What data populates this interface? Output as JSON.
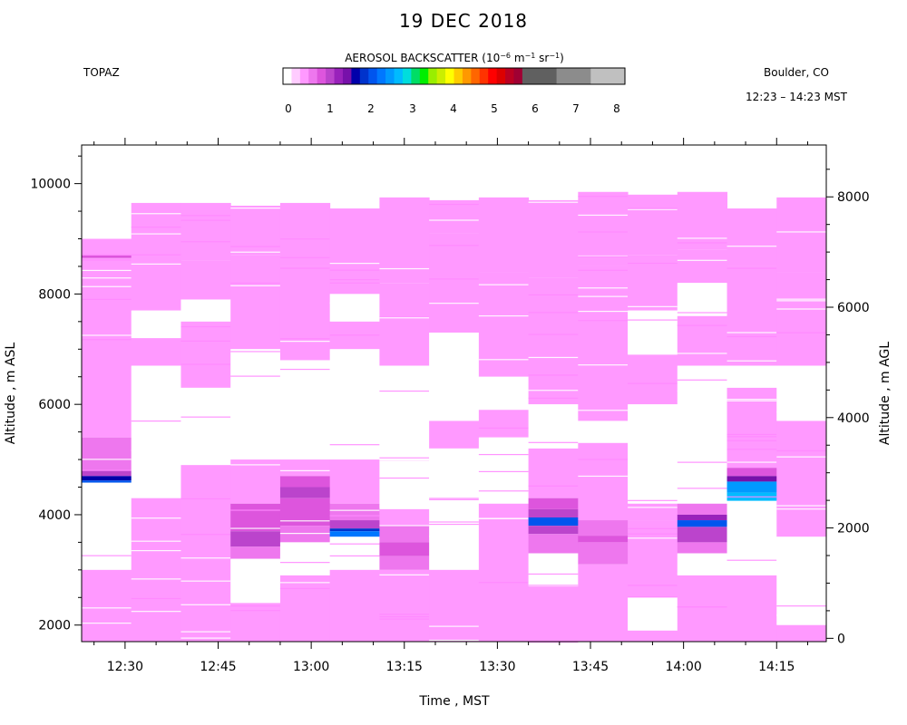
{
  "chart_data": {
    "type": "heatmap",
    "title": "19 DEC 2018",
    "instrument": "TOPAZ",
    "location": "Boulder, CO",
    "time_range": "12:23 – 14:23 MST",
    "colorbar": {
      "label": "AEROSOL BACKSCATTER (10",
      "exp1": "−6",
      "unit_m": " m",
      "exp2": "−1",
      "unit_sr": " sr",
      "exp3": "−1",
      "close": ")",
      "ticks": [
        "0",
        "1",
        "2",
        "3",
        "4",
        "5",
        "6",
        "7",
        "8"
      ],
      "range": [
        0,
        8
      ],
      "colors": [
        "#ffffff",
        "#ffccff",
        "#ff99ff",
        "#ee77ee",
        "#dd55dd",
        "#bb44cc",
        "#9922bb",
        "#7711aa",
        "#0000aa",
        "#0033cc",
        "#0055ee",
        "#0077ff",
        "#0099ff",
        "#00bbff",
        "#00dddd",
        "#00dd66",
        "#00ee00",
        "#99ee00",
        "#ccee00",
        "#ffff00",
        "#ffcc00",
        "#ff9900",
        "#ff6600",
        "#ff3300",
        "#ff0000",
        "#dd0000",
        "#bb0022",
        "#a00033",
        "#606060",
        "#606060",
        "#606060",
        "#606060",
        "#8c8c8c",
        "#8c8c8c",
        "#8c8c8c",
        "#8c8c8c",
        "#c0c0c0",
        "#c0c0c0",
        "#c0c0c0",
        "#c0c0c0"
      ]
    },
    "xlabel": "Time , MST",
    "ylabel_left": "Altitude , m ASL",
    "ylabel_right": "Altitude , m AGL",
    "x_ticks": [
      "12:30",
      "12:45",
      "13:00",
      "13:15",
      "13:30",
      "13:45",
      "14:00",
      "14:15"
    ],
    "x_tick_minutes": [
      30,
      45,
      60,
      75,
      90,
      105,
      120,
      135
    ],
    "xlim_minutes": [
      23,
      143
    ],
    "ylim_left": [
      1700,
      10700
    ],
    "y_ticks_left": [
      "2000",
      "4000",
      "6000",
      "8000",
      "10000"
    ],
    "y_ticks_left_values": [
      2000,
      4000,
      6000,
      8000,
      10000
    ],
    "y_ticks_right": [
      "0",
      "2000",
      "4000",
      "6000",
      "8000"
    ],
    "y_ticks_right_values": [
      0,
      2000,
      4000,
      6000,
      8000
    ],
    "agl_offset_m": 1760,
    "profiles": [
      {
        "top": 9000,
        "bands": [
          {
            "bottom": 8700,
            "top": 9000,
            "value": 0.3
          },
          {
            "bottom": 8650,
            "top": 8700,
            "value": 0.8
          },
          {
            "bottom": 5400,
            "top": 8650,
            "value": 0.4
          },
          {
            "bottom": 4800,
            "top": 5400,
            "value": 0.6
          },
          {
            "bottom": 4700,
            "top": 4800,
            "value": 1.0
          },
          {
            "bottom": 4620,
            "top": 4700,
            "value": 1.6
          },
          {
            "bottom": 4580,
            "top": 4620,
            "value": 2.0
          },
          {
            "bottom": 3000,
            "top": 4580,
            "value": 0.0
          },
          {
            "bottom": 1700,
            "top": 3000,
            "value": 0.4
          }
        ]
      },
      {
        "top": 9650,
        "bands": [
          {
            "bottom": 8500,
            "top": 9650,
            "value": 0.35
          },
          {
            "bottom": 7700,
            "top": 8500,
            "value": 0.4
          },
          {
            "bottom": 7200,
            "top": 7700,
            "value": 0.0
          },
          {
            "bottom": 6700,
            "top": 7200,
            "value": 0.4
          },
          {
            "bottom": 4300,
            "top": 6700,
            "value": 0.0
          },
          {
            "bottom": 1700,
            "top": 4300,
            "value": 0.4
          }
        ]
      },
      {
        "top": 9650,
        "bands": [
          {
            "bottom": 8600,
            "top": 9650,
            "value": 0.35
          },
          {
            "bottom": 7900,
            "top": 8600,
            "value": 0.4
          },
          {
            "bottom": 7500,
            "top": 7900,
            "value": 0.0
          },
          {
            "bottom": 6300,
            "top": 7500,
            "value": 0.4
          },
          {
            "bottom": 4900,
            "top": 6300,
            "value": 0.0
          },
          {
            "bottom": 1700,
            "top": 4900,
            "value": 0.4
          }
        ]
      },
      {
        "top": 9600,
        "bands": [
          {
            "bottom": 8700,
            "top": 9600,
            "value": 0.35
          },
          {
            "bottom": 7000,
            "top": 8700,
            "value": 0.4
          },
          {
            "bottom": 5000,
            "top": 7000,
            "value": 0.0
          },
          {
            "bottom": 4200,
            "top": 5000,
            "value": 0.4
          },
          {
            "bottom": 3700,
            "top": 4200,
            "value": 0.7
          },
          {
            "bottom": 3420,
            "top": 3700,
            "value": 0.9
          },
          {
            "bottom": 3200,
            "top": 3420,
            "value": 0.6
          },
          {
            "bottom": 2400,
            "top": 3200,
            "value": 0.0
          },
          {
            "bottom": 1700,
            "top": 2400,
            "value": 0.4
          }
        ]
      },
      {
        "top": 9650,
        "bands": [
          {
            "bottom": 8500,
            "top": 9650,
            "value": 0.35
          },
          {
            "bottom": 6800,
            "top": 8500,
            "value": 0.4
          },
          {
            "bottom": 5000,
            "top": 6800,
            "value": 0.0
          },
          {
            "bottom": 4700,
            "top": 5000,
            "value": 0.4
          },
          {
            "bottom": 4500,
            "top": 4700,
            "value": 0.7
          },
          {
            "bottom": 4300,
            "top": 4500,
            "value": 0.9
          },
          {
            "bottom": 3800,
            "top": 4300,
            "value": 0.7
          },
          {
            "bottom": 3500,
            "top": 3800,
            "value": 0.5
          },
          {
            "bottom": 2900,
            "top": 3500,
            "value": 0.0
          },
          {
            "bottom": 1700,
            "top": 2900,
            "value": 0.4
          }
        ]
      },
      {
        "top": 9550,
        "bands": [
          {
            "bottom": 8000,
            "top": 9550,
            "value": 0.4
          },
          {
            "bottom": 7500,
            "top": 8000,
            "value": 0.0
          },
          {
            "bottom": 7000,
            "top": 7500,
            "value": 0.4
          },
          {
            "bottom": 5000,
            "top": 7000,
            "value": 0.0
          },
          {
            "bottom": 4200,
            "top": 5000,
            "value": 0.4
          },
          {
            "bottom": 3900,
            "top": 4200,
            "value": 0.6
          },
          {
            "bottom": 3750,
            "top": 3900,
            "value": 0.9
          },
          {
            "bottom": 3700,
            "top": 3750,
            "value": 1.7
          },
          {
            "bottom": 3600,
            "top": 3700,
            "value": 2.2
          },
          {
            "bottom": 3000,
            "top": 3600,
            "value": 0.0
          },
          {
            "bottom": 1700,
            "top": 3000,
            "value": 0.4
          }
        ]
      },
      {
        "top": 9750,
        "bands": [
          {
            "bottom": 8200,
            "top": 9750,
            "value": 0.35
          },
          {
            "bottom": 6700,
            "top": 8200,
            "value": 0.4
          },
          {
            "bottom": 4100,
            "top": 6700,
            "value": 0.0
          },
          {
            "bottom": 3800,
            "top": 4100,
            "value": 0.4
          },
          {
            "bottom": 3500,
            "top": 3800,
            "value": 0.6
          },
          {
            "bottom": 3250,
            "top": 3500,
            "value": 0.8
          },
          {
            "bottom": 3000,
            "top": 3250,
            "value": 0.5
          },
          {
            "bottom": 1700,
            "top": 3000,
            "value": 0.4
          }
        ]
      },
      {
        "top": 9700,
        "bands": [
          {
            "bottom": 9100,
            "top": 9700,
            "value": 0.35
          },
          {
            "bottom": 7300,
            "top": 9100,
            "value": 0.4
          },
          {
            "bottom": 5700,
            "top": 7300,
            "value": 0.0
          },
          {
            "bottom": 5200,
            "top": 5700,
            "value": 0.4
          },
          {
            "bottom": 3000,
            "top": 5200,
            "value": 0.0
          },
          {
            "bottom": 1700,
            "top": 3000,
            "value": 0.4
          }
        ]
      },
      {
        "top": 9750,
        "bands": [
          {
            "bottom": 8400,
            "top": 9750,
            "value": 0.35
          },
          {
            "bottom": 6500,
            "top": 8400,
            "value": 0.4
          },
          {
            "bottom": 5900,
            "top": 6500,
            "value": 0.0
          },
          {
            "bottom": 5400,
            "top": 5900,
            "value": 0.4
          },
          {
            "bottom": 4200,
            "top": 5400,
            "value": 0.0
          },
          {
            "bottom": 1700,
            "top": 4200,
            "value": 0.4
          }
        ]
      },
      {
        "top": 9700,
        "bands": [
          {
            "bottom": 8300,
            "top": 9700,
            "value": 0.35
          },
          {
            "bottom": 6000,
            "top": 8300,
            "value": 0.4
          },
          {
            "bottom": 5200,
            "top": 6000,
            "value": 0.0
          },
          {
            "bottom": 4300,
            "top": 5200,
            "value": 0.4
          },
          {
            "bottom": 4100,
            "top": 4300,
            "value": 0.7
          },
          {
            "bottom": 3950,
            "top": 4100,
            "value": 1.0
          },
          {
            "bottom": 3800,
            "top": 3950,
            "value": 1.9
          },
          {
            "bottom": 3650,
            "top": 3800,
            "value": 1.0
          },
          {
            "bottom": 3300,
            "top": 3650,
            "value": 0.6
          },
          {
            "bottom": 2700,
            "top": 3300,
            "value": 0.0
          },
          {
            "bottom": 1700,
            "top": 2700,
            "value": 0.4
          }
        ]
      },
      {
        "top": 9850,
        "bands": [
          {
            "bottom": 8500,
            "top": 9850,
            "value": 0.35
          },
          {
            "bottom": 5700,
            "top": 8500,
            "value": 0.4
          },
          {
            "bottom": 5300,
            "top": 5700,
            "value": 0.0
          },
          {
            "bottom": 3900,
            "top": 5300,
            "value": 0.4
          },
          {
            "bottom": 3620,
            "top": 3900,
            "value": 0.6
          },
          {
            "bottom": 3500,
            "top": 3620,
            "value": 0.8
          },
          {
            "bottom": 3100,
            "top": 3500,
            "value": 0.5
          },
          {
            "bottom": 1700,
            "top": 3100,
            "value": 0.4
          }
        ]
      },
      {
        "top": 9800,
        "bands": [
          {
            "bottom": 8700,
            "top": 9800,
            "value": 0.35
          },
          {
            "bottom": 7700,
            "top": 8700,
            "value": 0.4
          },
          {
            "bottom": 6900,
            "top": 7700,
            "value": 0.0
          },
          {
            "bottom": 6000,
            "top": 6900,
            "value": 0.4
          },
          {
            "bottom": 4200,
            "top": 6000,
            "value": 0.0
          },
          {
            "bottom": 3900,
            "top": 4200,
            "value": 0.4
          },
          {
            "bottom": 2500,
            "top": 3900,
            "value": 0.4
          },
          {
            "bottom": 1900,
            "top": 2500,
            "value": 0.0
          },
          {
            "bottom": 1700,
            "top": 1900,
            "value": 0.4
          }
        ]
      },
      {
        "top": 9850,
        "bands": [
          {
            "bottom": 8800,
            "top": 9850,
            "value": 0.35
          },
          {
            "bottom": 8200,
            "top": 8800,
            "value": 0.4
          },
          {
            "bottom": 7600,
            "top": 8200,
            "value": 0.0
          },
          {
            "bottom": 6700,
            "top": 7600,
            "value": 0.4
          },
          {
            "bottom": 4200,
            "top": 6700,
            "value": 0.0
          },
          {
            "bottom": 4000,
            "top": 4200,
            "value": 0.6
          },
          {
            "bottom": 3900,
            "top": 4000,
            "value": 1.2
          },
          {
            "bottom": 3780,
            "top": 3900,
            "value": 2.0
          },
          {
            "bottom": 3500,
            "top": 3780,
            "value": 0.9
          },
          {
            "bottom": 3300,
            "top": 3500,
            "value": 0.6
          },
          {
            "bottom": 2900,
            "top": 3300,
            "value": 0.0
          },
          {
            "bottom": 1700,
            "top": 2900,
            "value": 0.4
          }
        ]
      },
      {
        "top": 9550,
        "bands": [
          {
            "bottom": 8500,
            "top": 9550,
            "value": 0.35
          },
          {
            "bottom": 6700,
            "top": 8500,
            "value": 0.4
          },
          {
            "bottom": 6300,
            "top": 6700,
            "value": 0.0
          },
          {
            "bottom": 4850,
            "top": 6300,
            "value": 0.4
          },
          {
            "bottom": 4700,
            "top": 4850,
            "value": 0.8
          },
          {
            "bottom": 4600,
            "top": 4700,
            "value": 1.4
          },
          {
            "bottom": 4400,
            "top": 4600,
            "value": 2.3
          },
          {
            "bottom": 4250,
            "top": 4400,
            "value": 2.6
          },
          {
            "bottom": 2900,
            "top": 4250,
            "value": 0.0
          },
          {
            "bottom": 1700,
            "top": 2900,
            "value": 0.4
          }
        ]
      },
      {
        "top": 9750,
        "bands": [
          {
            "bottom": 8400,
            "top": 9750,
            "value": 0.35
          },
          {
            "bottom": 6700,
            "top": 8400,
            "value": 0.4
          },
          {
            "bottom": 5700,
            "top": 6700,
            "value": 0.0
          },
          {
            "bottom": 3600,
            "top": 5700,
            "value": 0.4
          },
          {
            "bottom": 2000,
            "top": 3600,
            "value": 0.0
          },
          {
            "bottom": 1700,
            "top": 2000,
            "value": 0.4
          }
        ]
      }
    ]
  }
}
